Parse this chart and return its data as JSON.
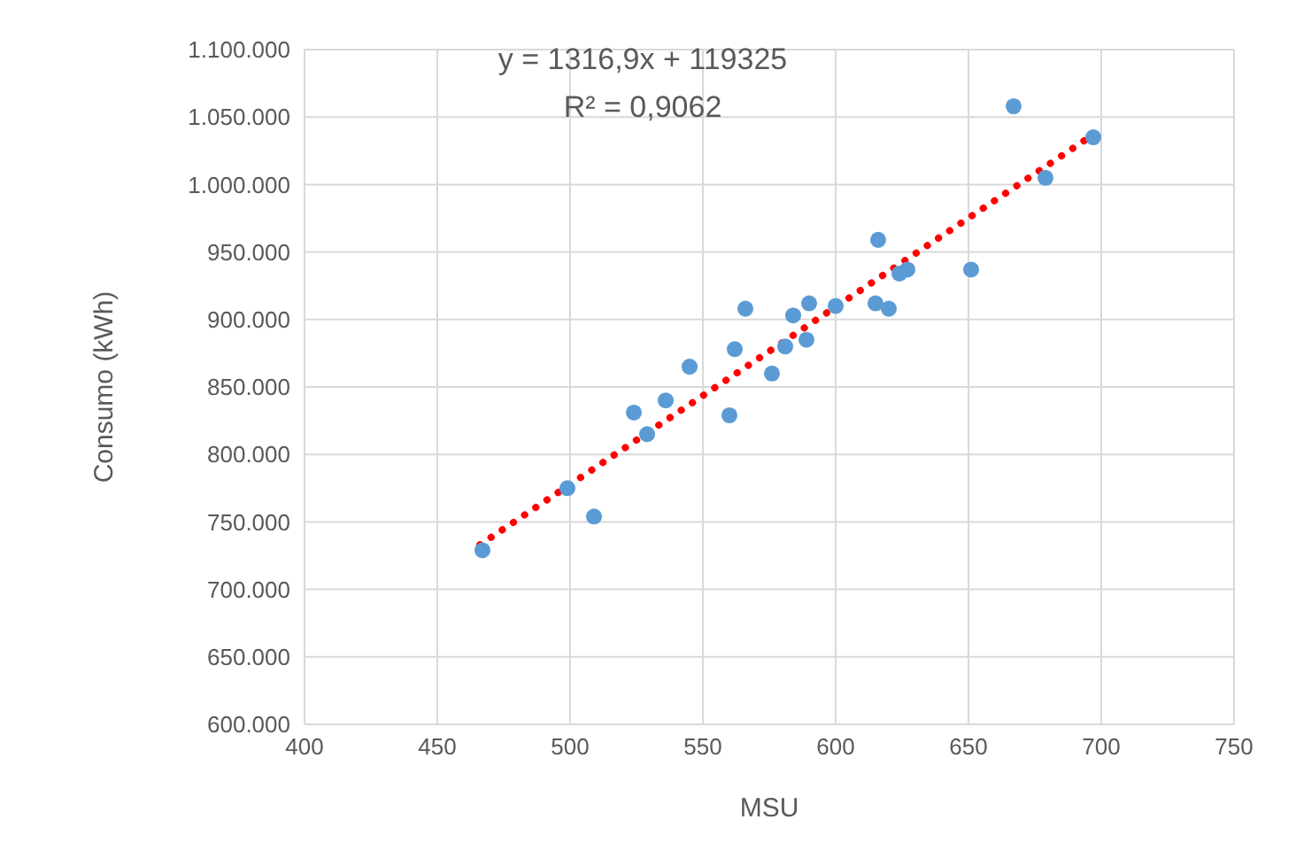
{
  "chart_data": {
    "type": "scatter",
    "xlabel": "MSU",
    "ylabel": "Consumo (kWh)",
    "annotations": [
      "y = 1316,9x + 119325",
      "R² = 0,9062"
    ],
    "xlim": [
      400,
      750
    ],
    "xticks": [
      400,
      450,
      500,
      550,
      600,
      650,
      700,
      750
    ],
    "ylim": [
      600000,
      1100000
    ],
    "yticks": [
      {
        "value": 600000,
        "label": "600.000"
      },
      {
        "value": 650000,
        "label": "650.000"
      },
      {
        "value": 700000,
        "label": "700.000"
      },
      {
        "value": 750000,
        "label": "750.000"
      },
      {
        "value": 800000,
        "label": "800.000"
      },
      {
        "value": 850000,
        "label": "850.000"
      },
      {
        "value": 900000,
        "label": "900.000"
      },
      {
        "value": 950000,
        "label": "950.000"
      },
      {
        "value": 1000000,
        "label": "1.000.000"
      },
      {
        "value": 1050000,
        "label": "1.050.000"
      },
      {
        "value": 1100000,
        "label": "1.100.000"
      }
    ],
    "grid": true,
    "marker": "circle",
    "series": [
      {
        "color": "#5b9bd5",
        "x": [
          467,
          499,
          509,
          524,
          529,
          536,
          545,
          560,
          562,
          566,
          576,
          581,
          584,
          589,
          590,
          600,
          615,
          616,
          620,
          624,
          627,
          651,
          667,
          679,
          697
        ],
        "values": [
          729000,
          775000,
          754000,
          831000,
          815000,
          840000,
          865000,
          829000,
          878000,
          908000,
          860000,
          880000,
          903000,
          885000,
          912000,
          910000,
          912000,
          959000,
          908000,
          934000,
          937000,
          937000,
          1058000,
          1005000,
          1035000
        ]
      },
      {
        "type": "line",
        "color": "#ff0000",
        "line_style": "dotted",
        "marker": "none",
        "x": [
          466,
          697
        ],
        "values": [
          733000,
          1037000
        ]
      }
    ]
  }
}
